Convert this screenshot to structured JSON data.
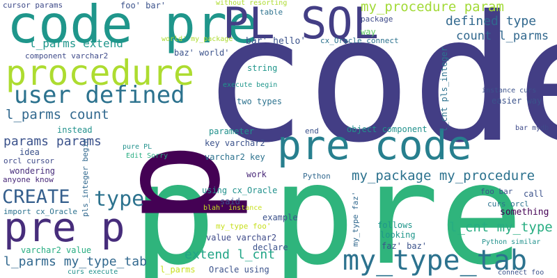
{
  "word_cloud": {
    "words": [
      {
        "text": "code",
        "color": "#433e85",
        "size": "xl"
      },
      {
        "text": "pre",
        "color": "#2fb47c",
        "size": "xl"
      },
      {
        "text": "p",
        "color": "#2fb47c",
        "size": "xl"
      },
      {
        "text": "p",
        "color": "#440154",
        "size": "xl",
        "vertical": true
      },
      {
        "text": "code pre",
        "color": "#1f968b",
        "size": "l"
      },
      {
        "text": "PL SQL",
        "color": "#433e85",
        "size": "l"
      },
      {
        "text": "procedure",
        "color": "#addc30",
        "size": "l"
      },
      {
        "text": "pre code",
        "color": "#277f8e",
        "size": "l"
      },
      {
        "text": "pre p",
        "color": "#472d7b",
        "size": "l"
      },
      {
        "text": "my_type_tab",
        "color": "#2c728e",
        "size": "l"
      },
      {
        "text": "user defined",
        "color": "#2c728e",
        "size": "m"
      },
      {
        "text": "type",
        "color": "#2c728e",
        "size": "m"
      },
      {
        "text": "CREATE",
        "color": "#355f8d",
        "size": "m"
      },
      {
        "text": "my_procedure param",
        "color": "#a2da37",
        "size": "s"
      },
      {
        "text": "defined type",
        "color": "#31688e",
        "size": "s"
      },
      {
        "text": "count l_parms",
        "color": "#31688e",
        "size": "s"
      },
      {
        "text": "l_parms count",
        "color": "#31688e",
        "size": "s"
      },
      {
        "text": "my_package my_procedure",
        "color": "#2c728e",
        "size": "s"
      },
      {
        "text": "l_cnt my_type",
        "color": "#27ad81",
        "size": "s"
      },
      {
        "text": "l_parms extend",
        "color": "#1f968b",
        "size": "s"
      },
      {
        "text": "params params",
        "color": "#3b528b",
        "size": "s"
      },
      {
        "text": "extend l_cnt",
        "color": "#20a486",
        "size": "s"
      },
      {
        "text": "l_parms my_type_tab",
        "color": "#31688e",
        "size": "s"
      },
      {
        "text": "cursor params",
        "color": "#3e4a89",
        "size": "xs"
      },
      {
        "text": "foo' bar'",
        "color": "#3b528b",
        "size": "xs"
      },
      {
        "text": "without resorting",
        "color": "#addc30",
        "size": "xs"
      },
      {
        "text": "table",
        "color": "#2c728e",
        "size": "xs"
      },
      {
        "text": "package",
        "color": "#3e4a89",
        "size": "xs"
      },
      {
        "text": "way",
        "color": "#5ec962",
        "size": "xs"
      },
      {
        "text": "world' my_package",
        "color": "#addc30",
        "size": "xs"
      },
      {
        "text": "bar' hello'",
        "color": "#3b528b",
        "size": "xs"
      },
      {
        "text": "cx_Oracle connect",
        "color": "#2c728e",
        "size": "xs"
      },
      {
        "text": "component varchar2",
        "color": "#3e4a89",
        "size": "xs"
      },
      {
        "text": "baz' world'",
        "color": "#3b528b",
        "size": "xs"
      },
      {
        "text": "string",
        "color": "#1f968b",
        "size": "xs"
      },
      {
        "text": "execute begin",
        "color": "#1f968b",
        "size": "xs"
      },
      {
        "text": "two types",
        "color": "#2c728e",
        "size": "xs"
      },
      {
        "text": "l_cnt pls_integer",
        "color": "#2c728e",
        "size": "xs",
        "vertical": true
      },
      {
        "text": "instance curs",
        "color": "#3b528b",
        "size": "xs"
      },
      {
        "text": "easier way",
        "color": "#3b528b",
        "size": "xs"
      },
      {
        "text": "instead",
        "color": "#21918c",
        "size": "xs"
      },
      {
        "text": "parameter",
        "color": "#21918c",
        "size": "xs"
      },
      {
        "text": "end",
        "color": "#3b528b",
        "size": "xs"
      },
      {
        "text": "object component",
        "color": "#21918c",
        "size": "xs"
      },
      {
        "text": "bar mydb",
        "color": "#3e4a89",
        "size": "xs"
      },
      {
        "text": "idea",
        "color": "#3b528b",
        "size": "xs"
      },
      {
        "text": "orcl cursor",
        "color": "#3e4a89",
        "size": "xs"
      },
      {
        "text": "wondering",
        "color": "#472d7b",
        "size": "xs"
      },
      {
        "text": "anyone know",
        "color": "#482878",
        "size": "xs"
      },
      {
        "text": "pure PL",
        "color": "#21918c",
        "size": "xs"
      },
      {
        "text": "Edit Sorry",
        "color": "#27ad81",
        "size": "xs"
      },
      {
        "text": "key varchar2",
        "color": "#3b528b",
        "size": "xs"
      },
      {
        "text": "varchar2 key",
        "color": "#2c728e",
        "size": "xs"
      },
      {
        "text": "work",
        "color": "#482878",
        "size": "xs"
      },
      {
        "text": "Python",
        "color": "#31688e",
        "size": "xs"
      },
      {
        "text": "pls_integer begin",
        "color": "#31688e",
        "size": "xs",
        "vertical": true
      },
      {
        "text": "my_type faz'",
        "color": "#31688e",
        "size": "xs",
        "vertical": true
      },
      {
        "text": "import cx_Oracle",
        "color": "#2c728e",
        "size": "xs"
      },
      {
        "text": "using cx_Oracle",
        "color": "#21918c",
        "size": "xs"
      },
      {
        "text": "said",
        "color": "#3b528b",
        "size": "xs"
      },
      {
        "text": "blah' instance",
        "color": "#c8e020",
        "size": "xs"
      },
      {
        "text": "foo bar",
        "color": "#3b528b",
        "size": "xs"
      },
      {
        "text": "call",
        "color": "#3b528b",
        "size": "xs"
      },
      {
        "text": "curs orcl",
        "color": "#2c728e",
        "size": "xs"
      },
      {
        "text": "something",
        "color": "#440154",
        "size": "xs"
      },
      {
        "text": "example",
        "color": "#3b528b",
        "size": "xs"
      },
      {
        "text": "my_type foo'",
        "color": "#c8e020",
        "size": "xs"
      },
      {
        "text": "value varchar2",
        "color": "#3e4a89",
        "size": "xs"
      },
      {
        "text": "declare",
        "color": "#3b528b",
        "size": "xs"
      },
      {
        "text": "follows",
        "color": "#1f968b",
        "size": "xs"
      },
      {
        "text": "looking",
        "color": "#1f968b",
        "size": "xs"
      },
      {
        "text": "faz' baz'",
        "color": "#3b528b",
        "size": "xs"
      },
      {
        "text": "Python similar",
        "color": "#21918c",
        "size": "xs"
      },
      {
        "text": "varchar2 value",
        "color": "#27ad81",
        "size": "xs"
      },
      {
        "text": "l_parms",
        "color": "#c8e020",
        "size": "xs"
      },
      {
        "text": "Oracle using",
        "color": "#3b528b",
        "size": "xs"
      },
      {
        "text": "curs execute",
        "color": "#21918c",
        "size": "xs"
      },
      {
        "text": "connect foo",
        "color": "#3b528b",
        "size": "xs"
      }
    ]
  }
}
